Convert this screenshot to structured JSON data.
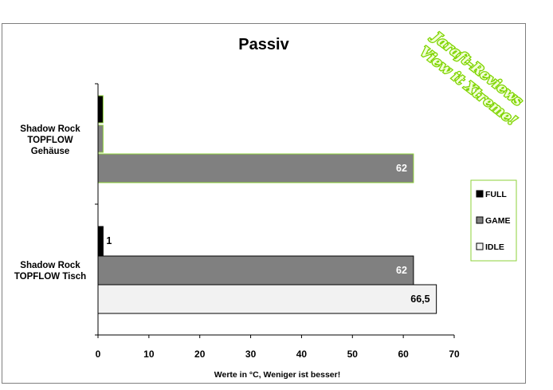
{
  "chart_data": {
    "type": "bar",
    "orientation": "horizontal",
    "title": "Passiv",
    "xlabel": "Werte in °C, Weniger ist besser!",
    "xlim": [
      0,
      70
    ],
    "xticks": [
      "0",
      "10",
      "20",
      "30",
      "40",
      "50",
      "60",
      "70"
    ],
    "categories": [
      "Shadow Rock TOPFLOW Gehäuse",
      "Shadow Rock TOPFLOW Tisch"
    ],
    "category_lines": [
      [
        "Shadow Rock",
        "TOPFLOW",
        "Gehäuse"
      ],
      [
        "Shadow Rock",
        "TOPFLOW Tisch"
      ]
    ],
    "series": [
      {
        "name": "FULL",
        "color": "#000000",
        "values": [
          1,
          1
        ],
        "labels": [
          "",
          "1"
        ]
      },
      {
        "name": "GAME",
        "color": "#808080",
        "values": [
          1,
          62
        ],
        "labels": [
          "",
          "62"
        ]
      },
      {
        "name": "IDLE",
        "color": "#f2f2f2",
        "values": [
          62,
          66.5
        ],
        "labels": [
          "62",
          "66,5"
        ]
      }
    ],
    "legend_position": "right",
    "grid": false
  },
  "watermark": {
    "line1": "Jaraft-Reviews",
    "line2": "View it Xtreme!"
  }
}
